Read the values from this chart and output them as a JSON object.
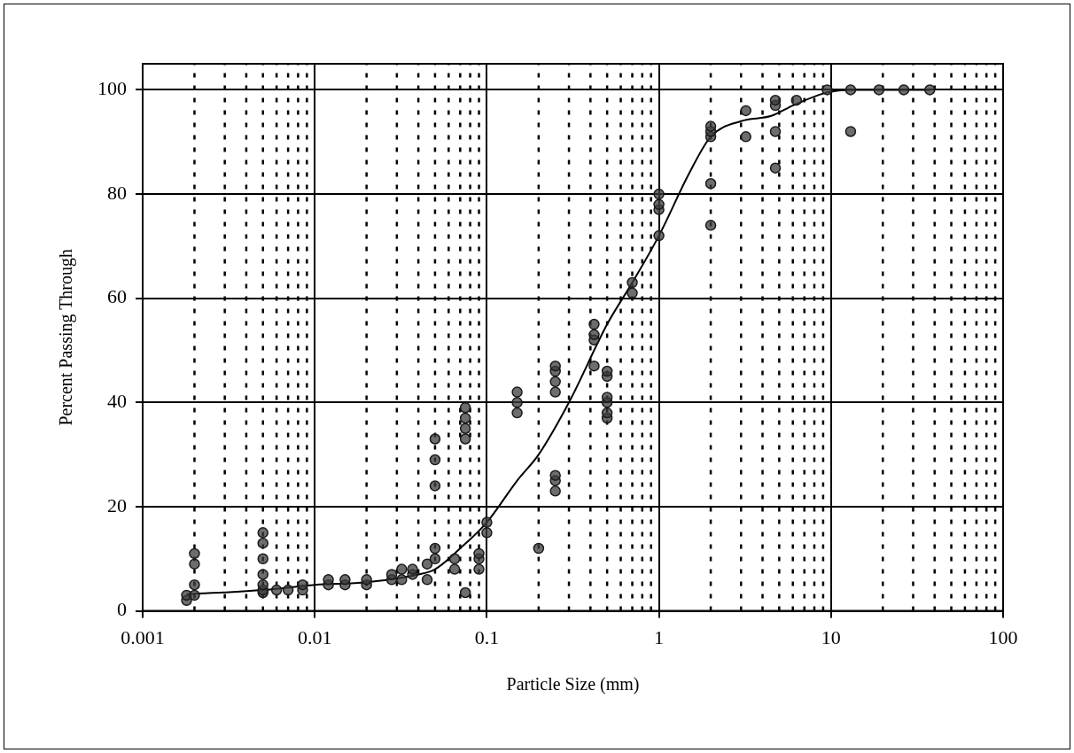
{
  "chart_data": {
    "type": "scatter",
    "xlabel": "Particle Size (mm)",
    "ylabel": "Percent Passing Through",
    "log": "x",
    "grid": true,
    "legend": false,
    "marker": "circle",
    "xlim": [
      0.001,
      100
    ],
    "xticks": [
      0.001,
      0.01,
      0.1,
      1,
      10,
      100
    ],
    "ylim": [
      0,
      105
    ],
    "yticks": [
      0,
      20,
      40,
      60,
      80,
      100
    ],
    "series": [
      {
        "color": "#1a1a1a",
        "x": [
          0.0018,
          0.0018,
          0.002,
          0.002,
          0.002,
          0.002,
          0.005,
          0.005,
          0.005,
          0.005,
          0.005,
          0.005,
          0.005,
          0.006,
          0.007,
          0.0085,
          0.0085,
          0.012,
          0.012,
          0.015,
          0.015,
          0.02,
          0.02,
          0.028,
          0.028,
          0.032,
          0.032,
          0.037,
          0.037,
          0.045,
          0.045,
          0.05,
          0.05,
          0.05,
          0.05,
          0.05,
          0.065,
          0.065,
          0.075,
          0.075,
          0.075,
          0.075,
          0.075,
          0.09,
          0.09,
          0.09,
          0.1,
          0.1,
          0.15,
          0.15,
          0.15,
          0.2,
          0.25,
          0.25,
          0.25,
          0.25,
          0.25,
          0.25,
          0.25,
          0.42,
          0.42,
          0.42,
          0.42,
          0.5,
          0.5,
          0.5,
          0.5,
          0.5,
          0.5,
          0.7,
          0.7,
          1,
          1,
          1,
          1,
          2,
          2,
          2,
          2,
          2,
          3.2,
          3.2,
          4.75,
          4.75,
          4.75,
          4.75,
          6.3,
          9.5,
          13,
          13,
          19,
          26.5,
          37.5
        ],
        "values": [
          2,
          3,
          3,
          5,
          9,
          11,
          3.5,
          4,
          5,
          7,
          10,
          13,
          15,
          4,
          4,
          4,
          5,
          5,
          6,
          5,
          6,
          5,
          6,
          6,
          7,
          6,
          8,
          7,
          8,
          6,
          9,
          10,
          12,
          24,
          29,
          33,
          8,
          10,
          3.5,
          33,
          35,
          37,
          39,
          8,
          10,
          11,
          15,
          17,
          38,
          40,
          42,
          12,
          23,
          25,
          26,
          42,
          44,
          46,
          47,
          47,
          52,
          53,
          55,
          37,
          38,
          40,
          41,
          45,
          46,
          61,
          63,
          72,
          77,
          78,
          80,
          74,
          82,
          91,
          92,
          93,
          91,
          96,
          85,
          92,
          97,
          98,
          98,
          100,
          92,
          100,
          100,
          100,
          100
        ]
      },
      {
        "type": "line",
        "color": "#000000",
        "marker": "none",
        "line_style": "solid",
        "x": [
          0.0018,
          0.005,
          0.01,
          0.02,
          0.04,
          0.05,
          0.07,
          0.1,
          0.15,
          0.2,
          0.3,
          0.5,
          0.7,
          1,
          1.5,
          2,
          3,
          4.5,
          6,
          9.5,
          13,
          20,
          37.5
        ],
        "values": [
          3.2,
          4,
          5,
          5.5,
          7,
          8,
          12,
          17,
          25,
          30,
          40,
          55,
          63,
          72,
          84,
          91,
          94,
          95,
          97,
          99.5,
          100,
          100,
          100
        ]
      }
    ]
  }
}
